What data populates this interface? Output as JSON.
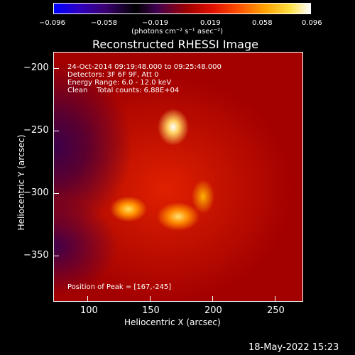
{
  "colorbar": {
    "ticks": [
      "−0.096",
      "−0.058",
      "−0.019",
      "0.019",
      "0.058",
      "0.096"
    ],
    "unit_label": "(photons cm⁻² s⁻¹ asec⁻²)"
  },
  "title": "Reconstructed RHESSI Image",
  "info": {
    "line1": "24-Oct-2014 09:19:48.000 to 09:25:48.000",
    "line2": "Detectors: 3F 6F 9F, Att 0",
    "line3": "Energy Range: 6.0 - 12.0 keV",
    "line4": "Clean    Total counts: 6.88E+04"
  },
  "peak_text": "Position of Peak = [167,-245]",
  "axes": {
    "xlabel": "Heliocentric X (arcsec)",
    "ylabel": "Heliocentric Y (arcsec)",
    "xticks": [
      "100",
      "150",
      "200",
      "250"
    ],
    "yticks": [
      "−200",
      "−250",
      "−300",
      "−350"
    ]
  },
  "datestamp": "18-May-2022 15:23"
}
